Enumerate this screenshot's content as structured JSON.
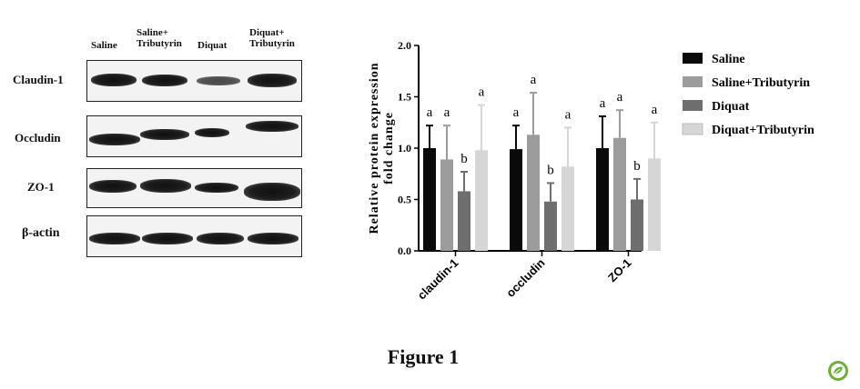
{
  "blot": {
    "lanes": [
      "Saline",
      "Saline+\nTributyrin",
      "Diquat",
      "Diquat+\nTributyrin"
    ],
    "proteins": [
      "Claudin-1",
      "Occludin",
      "ZO-1",
      "β-actin"
    ]
  },
  "chart_data": {
    "type": "bar",
    "categories": [
      "claudin-1",
      "occludin",
      "ZO-1"
    ],
    "ylabel": "Relative protein expression\nfold change",
    "ylim": [
      0,
      2.0
    ],
    "yticks": [
      "0.0",
      "0.5",
      "1.0",
      "1.5",
      "2.0"
    ],
    "legend_position": "right",
    "series": [
      {
        "name": "Saline",
        "color": "#0a0a0a",
        "values": [
          1.0,
          0.99,
          1.0
        ],
        "errors": [
          0.22,
          0.23,
          0.31
        ],
        "letters": [
          "a",
          "a",
          "a"
        ]
      },
      {
        "name": "Saline+Tributyrin",
        "color": "#9c9c9c",
        "values": [
          0.89,
          1.13,
          1.1
        ],
        "errors": [
          0.33,
          0.41,
          0.27
        ],
        "letters": [
          "a",
          "a",
          "a"
        ]
      },
      {
        "name": "Diquat",
        "color": "#6e6e6e",
        "values": [
          0.58,
          0.48,
          0.5
        ],
        "errors": [
          0.19,
          0.18,
          0.2
        ],
        "letters": [
          "b",
          "b",
          "b"
        ]
      },
      {
        "name": "Diquat+Tributyrin",
        "color": "#d6d6d6",
        "values": [
          0.98,
          0.82,
          0.9
        ],
        "errors": [
          0.44,
          0.38,
          0.35
        ],
        "letters": [
          "a",
          "a",
          "a"
        ]
      }
    ]
  },
  "figure_caption": "Figure 1"
}
